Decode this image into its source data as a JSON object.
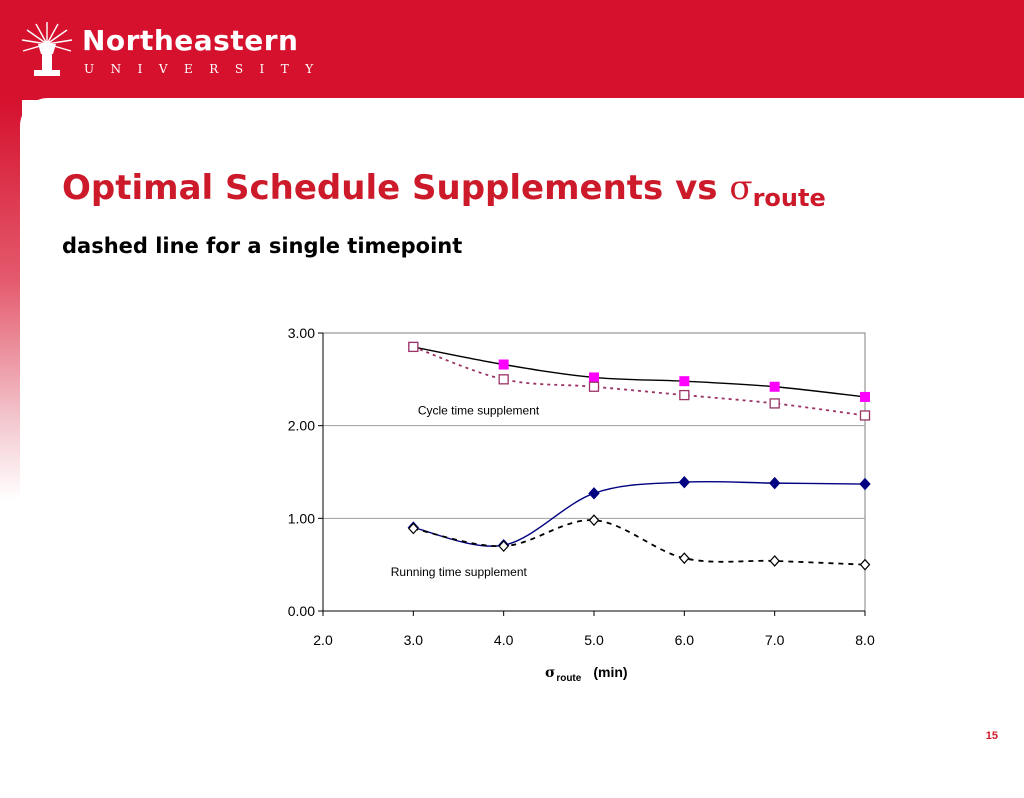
{
  "header": {
    "university_name": "Northeastern",
    "university_sub": "UNIVERSITY",
    "logo": "torch-icon"
  },
  "slide": {
    "title": "Optimal Schedule Supplements vs ",
    "title_symbol": "σ",
    "title_subscript": "route",
    "subtitle": "dashed line for a single timepoint",
    "page_number": "15"
  },
  "colors": {
    "banner": "#d5112e",
    "title": "#cc1a2b",
    "cycle_series": "#ff00ff",
    "cycle_dashed": "#993366",
    "running_series": "#000080"
  },
  "chart_data": {
    "type": "line",
    "xlabel_symbol": "σ",
    "xlabel_subscript": "route",
    "xlabel_unit": "(min)",
    "ylabel": "",
    "xlim": [
      2.0,
      8.0
    ],
    "ylim": [
      0.0,
      3.0
    ],
    "x_ticks": [
      "2.0",
      "3.0",
      "4.0",
      "5.0",
      "6.0",
      "7.0",
      "8.0"
    ],
    "y_ticks": [
      "0.00",
      "1.00",
      "2.00",
      "3.00"
    ],
    "grid": "horizontal",
    "annotations": [
      {
        "text": "Cycle time supplement",
        "x": 3.05,
        "y": 2.12
      },
      {
        "text": "Running time supplement",
        "x": 2.75,
        "y": 0.38
      }
    ],
    "series": [
      {
        "x": [
          3,
          4,
          5,
          6,
          7,
          8
        ],
        "values": [
          2.85,
          2.66,
          2.52,
          2.48,
          2.42,
          2.31
        ],
        "line": "solid",
        "line_color": "#000000",
        "marker": "square-filled",
        "marker_color": "#ff00ff"
      },
      {
        "x": [
          3,
          4,
          5,
          6,
          7,
          8
        ],
        "values": [
          2.85,
          2.5,
          2.42,
          2.33,
          2.24,
          2.11
        ],
        "line": "dotted",
        "line_color": "#993366",
        "marker": "square-open",
        "marker_color": "#993366"
      },
      {
        "x": [
          3,
          4,
          5,
          6,
          7,
          8
        ],
        "values": [
          0.9,
          0.71,
          1.27,
          1.39,
          1.38,
          1.37
        ],
        "line": "solid",
        "line_color": "#000080",
        "marker": "diamond-filled",
        "marker_color": "#000080"
      },
      {
        "x": [
          3,
          4,
          5,
          6,
          7,
          8
        ],
        "values": [
          0.89,
          0.7,
          0.98,
          0.57,
          0.54,
          0.5
        ],
        "line": "dashed",
        "line_color": "#000000",
        "marker": "diamond-open",
        "marker_color": "#000000"
      }
    ]
  }
}
